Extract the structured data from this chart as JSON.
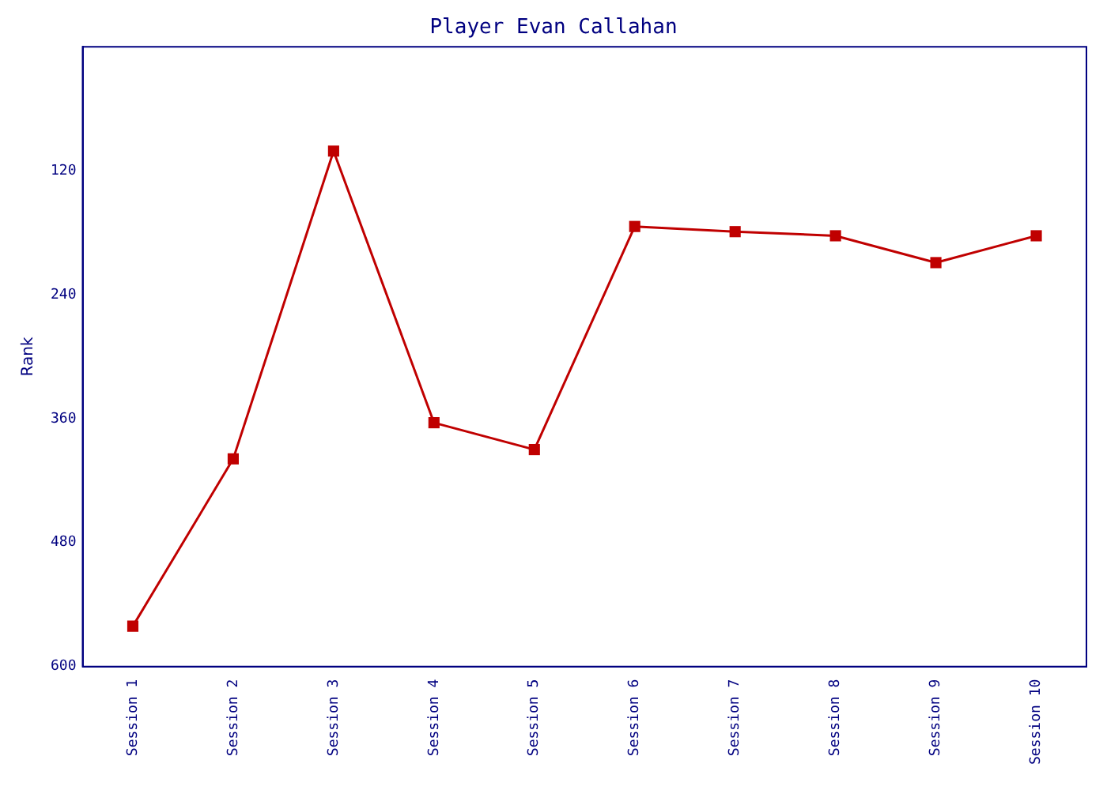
{
  "chart_data": {
    "type": "line",
    "title": "Player Evan Callahan",
    "ylabel": "Rank",
    "categories": [
      "Session 1",
      "Session 2",
      "Session 3",
      "Session 4",
      "Session 5",
      "Session 6",
      "Session 7",
      "Session 8",
      "Session 9",
      "Session 10"
    ],
    "series": [
      {
        "color": "#c00000",
        "values": [
          561,
          399,
          101,
          364,
          390,
          174,
          179,
          183,
          209,
          183
        ]
      }
    ],
    "ylim": [
      600,
      0
    ],
    "yticks": [
      120,
      240,
      360,
      480,
      600
    ],
    "marker": "square",
    "line_style": "solid",
    "grid": false,
    "legend": false
  }
}
